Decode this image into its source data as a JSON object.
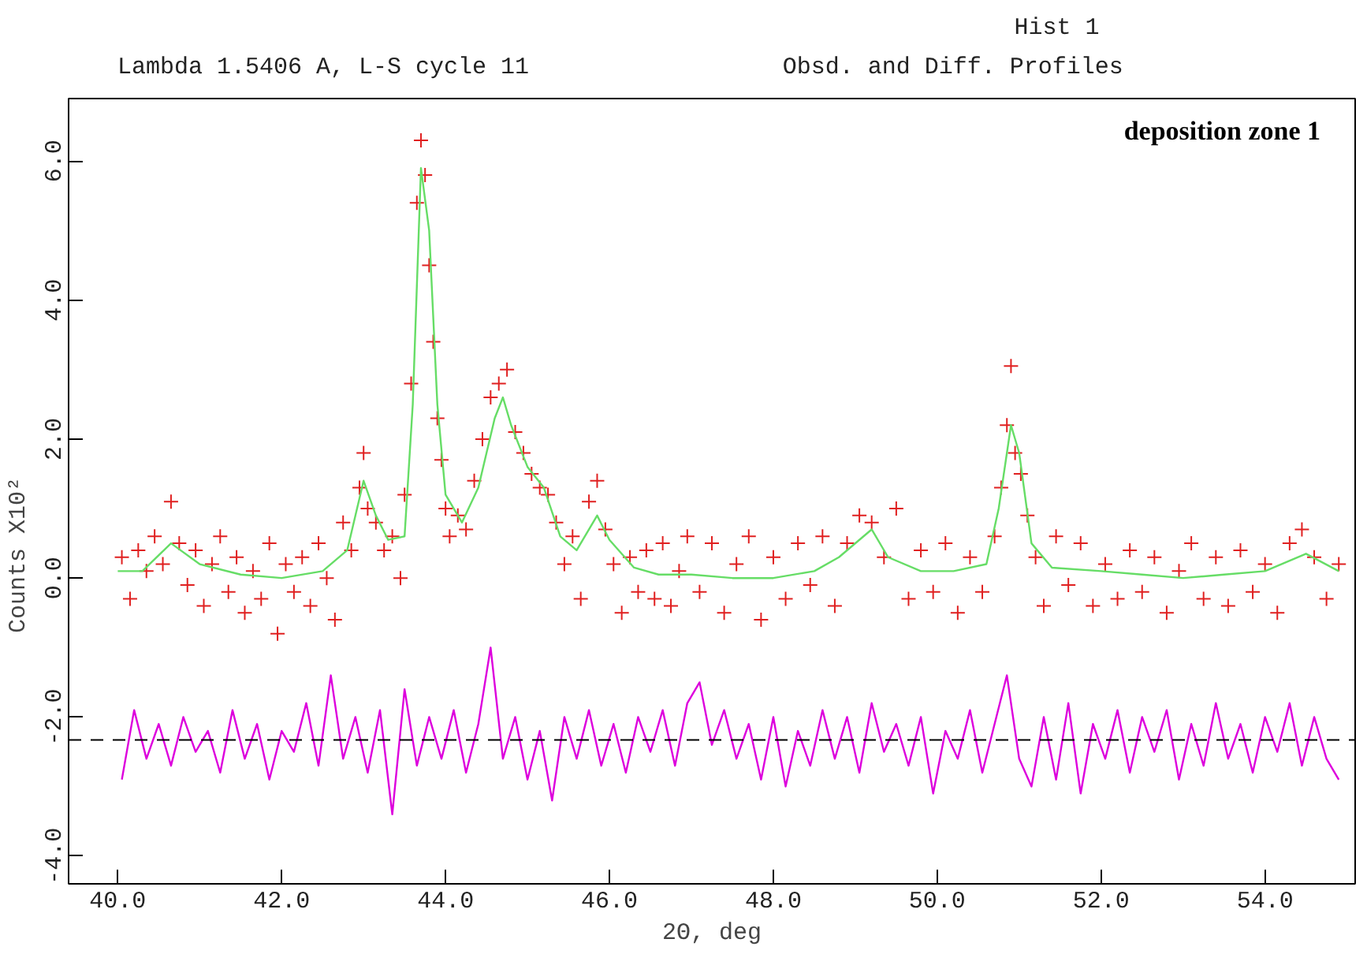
{
  "chart_data": {
    "type": "scatter",
    "title": "Lambda 1.5406 A, L-S cycle    11",
    "subtitle": "Obsd. and Diff. Profiles",
    "annotations": [
      "Hist   1",
      "deposition zone 1"
    ],
    "xlabel": "2Θ, deg",
    "ylabel": "Counts          X10²",
    "xlim": [
      39.4,
      55.1
    ],
    "xticks": [
      {
        "value": 40,
        "label": "40.0"
      },
      {
        "value": 42,
        "label": "42.0"
      },
      {
        "value": 44,
        "label": "44.0"
      },
      {
        "value": 46,
        "label": "46.0"
      },
      {
        "value": 48,
        "label": "48.0"
      },
      {
        "value": 50,
        "label": "50.0"
      },
      {
        "value": 52,
        "label": "52.0"
      },
      {
        "value": 54,
        "label": "54.0"
      }
    ],
    "ylim": [
      -4.4,
      6.9
    ],
    "yticks": [
      {
        "value": -4,
        "label": "-4.0"
      },
      {
        "value": -2,
        "label": "-2.0"
      },
      {
        "value": 0,
        "label": "0.0"
      },
      {
        "value": 2,
        "label": "2.0"
      },
      {
        "value": 4,
        "label": "4.0"
      },
      {
        "value": 6,
        "label": "6.0"
      }
    ],
    "grid": false,
    "ref_lines": [
      {
        "axis": "y",
        "value": -2.33,
        "color": "#000000",
        "line_style": "dashed"
      }
    ],
    "series": [
      {
        "marker": "cross",
        "color": "#e02020",
        "x": [
          40.05,
          40.15,
          40.25,
          40.35,
          40.45,
          40.55,
          40.65,
          40.75,
          40.85,
          40.95,
          41.05,
          41.15,
          41.25,
          41.35,
          41.45,
          41.55,
          41.65,
          41.75,
          41.85,
          41.95,
          42.05,
          42.15,
          42.25,
          42.35,
          42.45,
          42.55,
          42.65,
          42.75,
          42.85,
          42.95,
          43.0,
          43.05,
          43.15,
          43.25,
          43.35,
          43.45,
          43.5,
          43.58,
          43.65,
          43.7,
          43.75,
          43.8,
          43.85,
          43.9,
          43.95,
          44.0,
          44.05,
          44.15,
          44.25,
          44.35,
          44.45,
          44.55,
          44.65,
          44.75,
          44.85,
          44.95,
          45.05,
          45.15,
          45.25,
          45.35,
          45.45,
          45.55,
          45.65,
          45.75,
          45.85,
          45.95,
          46.05,
          46.15,
          46.25,
          46.35,
          46.45,
          46.55,
          46.65,
          46.75,
          46.85,
          46.95,
          47.1,
          47.25,
          47.4,
          47.55,
          47.7,
          47.85,
          48.0,
          48.15,
          48.3,
          48.45,
          48.6,
          48.75,
          48.9,
          49.05,
          49.2,
          49.35,
          49.5,
          49.65,
          49.8,
          49.95,
          50.1,
          50.25,
          50.4,
          50.55,
          50.7,
          50.78,
          50.85,
          50.9,
          50.95,
          51.02,
          51.1,
          51.2,
          51.3,
          51.45,
          51.6,
          51.75,
          51.9,
          52.05,
          52.2,
          52.35,
          52.5,
          52.65,
          52.8,
          52.95,
          53.1,
          53.25,
          53.4,
          53.55,
          53.7,
          53.85,
          54.0,
          54.15,
          54.3,
          54.45,
          54.6,
          54.75,
          54.9
        ],
        "values": [
          0.3,
          -0.3,
          0.4,
          0.1,
          0.6,
          0.2,
          1.1,
          0.5,
          -0.1,
          0.4,
          -0.4,
          0.2,
          0.6,
          -0.2,
          0.3,
          -0.5,
          0.1,
          -0.3,
          0.5,
          -0.8,
          0.2,
          -0.2,
          0.3,
          -0.4,
          0.5,
          0.0,
          -0.6,
          0.8,
          0.4,
          1.3,
          1.8,
          1.0,
          0.8,
          0.4,
          0.6,
          0.0,
          1.2,
          2.8,
          5.4,
          6.3,
          5.8,
          4.5,
          3.4,
          2.3,
          1.7,
          1.0,
          0.6,
          0.9,
          0.7,
          1.4,
          2.0,
          2.6,
          2.8,
          3.0,
          2.1,
          1.8,
          1.5,
          1.3,
          1.2,
          0.8,
          0.2,
          0.6,
          -0.3,
          1.1,
          1.4,
          0.7,
          0.2,
          -0.5,
          0.3,
          -0.2,
          0.4,
          -0.3,
          0.5,
          -0.4,
          0.1,
          0.6,
          -0.2,
          0.5,
          -0.5,
          0.2,
          0.6,
          -0.6,
          0.3,
          -0.3,
          0.5,
          -0.1,
          0.6,
          -0.4,
          0.5,
          0.9,
          0.8,
          0.3,
          1.0,
          -0.3,
          0.4,
          -0.2,
          0.5,
          -0.5,
          0.3,
          -0.2,
          0.6,
          1.3,
          2.2,
          3.05,
          1.8,
          1.5,
          0.9,
          0.3,
          -0.4,
          0.6,
          -0.1,
          0.5,
          -0.4,
          0.2,
          -0.3,
          0.4,
          -0.2,
          0.3,
          -0.5,
          0.1,
          0.5,
          -0.3,
          0.3,
          -0.4,
          0.4,
          -0.2,
          0.2,
          -0.5,
          0.5,
          0.7,
          0.3,
          -0.3,
          0.2
        ]
      },
      {
        "type": "line",
        "color": "#66dd66",
        "x": [
          40.0,
          40.3,
          40.65,
          41.0,
          41.5,
          42.0,
          42.5,
          42.8,
          43.0,
          43.15,
          43.3,
          43.5,
          43.6,
          43.7,
          43.8,
          43.9,
          44.0,
          44.2,
          44.4,
          44.6,
          44.7,
          44.8,
          45.0,
          45.2,
          45.4,
          45.6,
          45.85,
          46.0,
          46.3,
          46.6,
          47.0,
          47.5,
          48.0,
          48.5,
          48.8,
          49.2,
          49.4,
          49.8,
          50.2,
          50.6,
          50.75,
          50.9,
          51.0,
          51.15,
          51.4,
          52.0,
          52.5,
          53.0,
          53.5,
          54.0,
          54.5,
          54.9
        ],
        "values": [
          0.1,
          0.1,
          0.5,
          0.2,
          0.05,
          0.0,
          0.1,
          0.4,
          1.4,
          0.9,
          0.55,
          0.6,
          2.5,
          5.9,
          5.0,
          2.5,
          1.2,
          0.8,
          1.3,
          2.3,
          2.6,
          2.2,
          1.6,
          1.3,
          0.6,
          0.4,
          0.9,
          0.55,
          0.15,
          0.05,
          0.05,
          0.0,
          0.0,
          0.1,
          0.3,
          0.7,
          0.3,
          0.1,
          0.1,
          0.2,
          1.0,
          2.2,
          1.8,
          0.5,
          0.15,
          0.1,
          0.05,
          0.0,
          0.05,
          0.1,
          0.35,
          0.1
        ]
      },
      {
        "type": "line",
        "color": "#dd00dd",
        "x": [
          40.05,
          40.2,
          40.35,
          40.5,
          40.65,
          40.8,
          40.95,
          41.1,
          41.25,
          41.4,
          41.55,
          41.7,
          41.85,
          42.0,
          42.15,
          42.3,
          42.45,
          42.6,
          42.75,
          42.9,
          43.05,
          43.2,
          43.35,
          43.5,
          43.65,
          43.8,
          43.95,
          44.1,
          44.25,
          44.4,
          44.55,
          44.7,
          44.85,
          45.0,
          45.15,
          45.3,
          45.45,
          45.6,
          45.75,
          45.9,
          46.05,
          46.2,
          46.35,
          46.5,
          46.65,
          46.8,
          46.95,
          47.1,
          47.25,
          47.4,
          47.55,
          47.7,
          47.85,
          48.0,
          48.15,
          48.3,
          48.45,
          48.6,
          48.75,
          48.9,
          49.05,
          49.2,
          49.35,
          49.5,
          49.65,
          49.8,
          49.95,
          50.1,
          50.25,
          50.4,
          50.55,
          50.7,
          50.85,
          51.0,
          51.15,
          51.3,
          51.45,
          51.6,
          51.75,
          51.9,
          52.05,
          52.2,
          52.35,
          52.5,
          52.65,
          52.8,
          52.95,
          53.1,
          53.25,
          53.4,
          53.55,
          53.7,
          53.85,
          54.0,
          54.15,
          54.3,
          54.45,
          54.6,
          54.75,
          54.9
        ],
        "values": [
          -2.9,
          -1.9,
          -2.6,
          -2.1,
          -2.7,
          -2.0,
          -2.5,
          -2.2,
          -2.8,
          -1.9,
          -2.6,
          -2.1,
          -2.9,
          -2.2,
          -2.5,
          -1.8,
          -2.7,
          -1.4,
          -2.6,
          -2.0,
          -2.8,
          -1.9,
          -3.4,
          -1.6,
          -2.7,
          -2.0,
          -2.6,
          -1.9,
          -2.8,
          -2.1,
          -1.0,
          -2.6,
          -2.0,
          -2.9,
          -2.2,
          -3.2,
          -2.0,
          -2.6,
          -1.9,
          -2.7,
          -2.1,
          -2.8,
          -2.0,
          -2.5,
          -1.9,
          -2.7,
          -1.8,
          -1.5,
          -2.4,
          -1.9,
          -2.6,
          -2.1,
          -2.9,
          -2.0,
          -3.0,
          -2.2,
          -2.7,
          -1.9,
          -2.6,
          -2.0,
          -2.8,
          -1.8,
          -2.5,
          -2.1,
          -2.7,
          -2.0,
          -3.1,
          -2.2,
          -2.6,
          -1.9,
          -2.8,
          -2.1,
          -1.4,
          -2.6,
          -3.0,
          -2.0,
          -2.9,
          -1.8,
          -3.1,
          -2.1,
          -2.6,
          -1.9,
          -2.8,
          -2.0,
          -2.5,
          -1.9,
          -2.9,
          -2.1,
          -2.7,
          -1.8,
          -2.6,
          -2.1,
          -2.8,
          -2.0,
          -2.5,
          -1.8,
          -2.7,
          -2.0,
          -2.6,
          -2.9
        ]
      }
    ]
  }
}
